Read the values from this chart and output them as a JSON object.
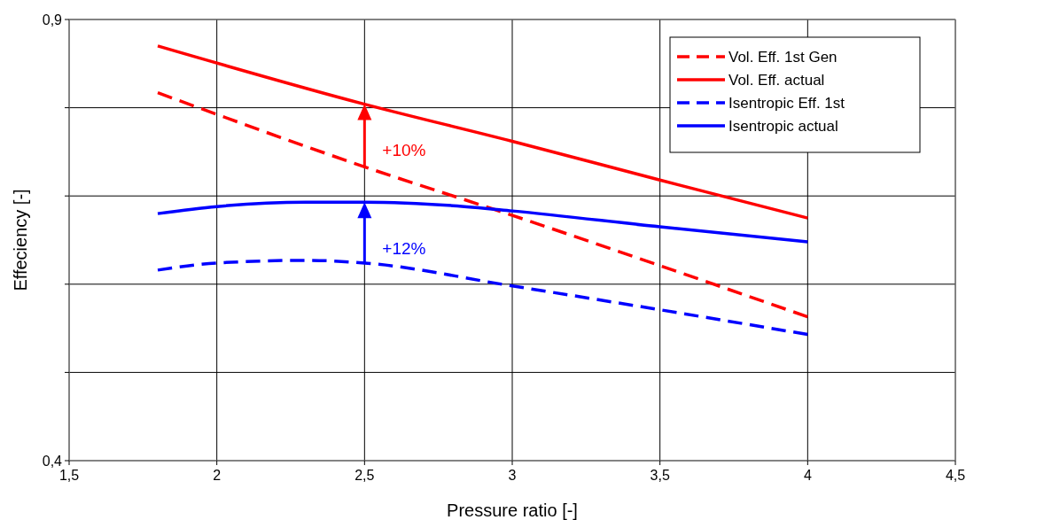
{
  "chart_data": {
    "type": "line",
    "xlabel": "Pressure ratio [-]",
    "ylabel": "Effeciency [-]",
    "xlim": [
      1.5,
      4.5
    ],
    "ylim": [
      0.4,
      0.9
    ],
    "xticks": [
      {
        "value": 1.5,
        "label": "1,5"
      },
      2,
      {
        "value": 2.5,
        "label": "2,5"
      },
      3,
      {
        "value": 3.5,
        "label": "3,5"
      },
      4,
      {
        "value": 4.5,
        "label": "4,5"
      }
    ],
    "yticks": [
      {
        "value": 0.4,
        "label": "0,4"
      },
      {
        "value": 0.5,
        "label": null
      },
      {
        "value": 0.6,
        "label": null
      },
      {
        "value": 0.7,
        "label": null
      },
      {
        "value": 0.8,
        "label": null
      },
      {
        "value": 0.9,
        "label": "0,9"
      }
    ],
    "grid": true,
    "legend": "top right",
    "marker": "none",
    "series": [
      {
        "name": "Vol. Eff. 1st Gen",
        "color": "#ff0000",
        "line_style": "dashed",
        "x": [
          1.8,
          2.5,
          3,
          3.5,
          4
        ],
        "values": [
          0.817,
          0.733,
          0.678,
          0.621,
          0.563
        ]
      },
      {
        "name": "Vol. Eff. actual",
        "color": "#ff0000",
        "line_style": "solid",
        "x": [
          1.8,
          2.5,
          3,
          3.5,
          4
        ],
        "values": [
          0.87,
          0.804,
          0.762,
          0.718,
          0.675
        ]
      },
      {
        "name": "Isentropic Eff. 1st",
        "color": "#0000ff",
        "line_style": "dashed",
        "x": [
          1.8,
          2,
          2.3,
          2.5,
          3,
          3.5,
          4
        ],
        "values": [
          0.616,
          0.624,
          0.627,
          0.624,
          0.598,
          0.571,
          0.543
        ]
      },
      {
        "name": "Isentropic actual",
        "color": "#0000ff",
        "line_style": "solid",
        "x": [
          1.8,
          2,
          2.3,
          2.5,
          2.8,
          3,
          3.5,
          4
        ],
        "values": [
          0.68,
          0.688,
          0.693,
          0.693,
          0.689,
          0.683,
          0.665,
          0.648
        ]
      }
    ],
    "annotations": [
      {
        "text": "+10%",
        "x": 2.5,
        "y": 0.804
      },
      {
        "text": "+12%",
        "x": 2.5,
        "y": 0.693
      }
    ]
  }
}
